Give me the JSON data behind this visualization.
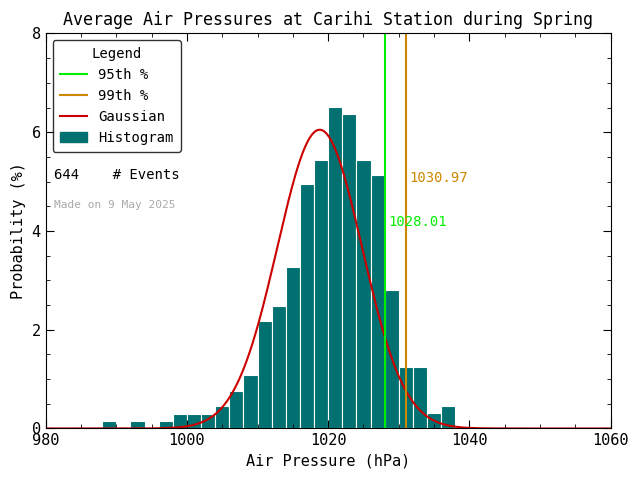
{
  "title": "Average Air Pressures at Carihi Station during Spring",
  "xlabel": "Air Pressure (hPa)",
  "ylabel": "Probability (%)",
  "xlim": [
    980,
    1060
  ],
  "ylim": [
    0,
    8
  ],
  "xticks": [
    980,
    1000,
    1020,
    1040,
    1060
  ],
  "yticks": [
    0,
    2,
    4,
    6,
    8
  ],
  "n_events": 644,
  "pct95": 1028.01,
  "pct99": 1030.97,
  "pct95_color": "#00ee00",
  "pct99_color": "#cc8800",
  "gaussian_color": "#cc0000",
  "hist_color": "#007070",
  "hist_edgecolor": "#ffffff",
  "background_color": "#ffffff",
  "bin_width": 2,
  "bin_lefts": [
    986,
    988,
    990,
    992,
    994,
    996,
    998,
    1000,
    1002,
    1004,
    1006,
    1008,
    1010,
    1012,
    1014,
    1016,
    1018,
    1020,
    1022,
    1024,
    1026,
    1028,
    1030,
    1032,
    1034,
    1036,
    1038
  ],
  "bin_counts_pct": [
    0.0,
    0.15,
    0.0,
    0.15,
    0.0,
    0.15,
    0.3,
    0.3,
    0.3,
    0.46,
    0.76,
    1.08,
    2.17,
    2.48,
    3.26,
    4.96,
    5.44,
    6.52,
    6.37,
    5.44,
    5.13,
    2.8,
    1.24,
    1.24,
    0.31,
    0.46,
    0.0
  ],
  "gauss_mean": 1018.8,
  "gauss_std": 6.0,
  "gauss_amplitude": 6.05,
  "date_text": "Made on 9 May 2025",
  "date_color": "#aaaaaa",
  "title_fontsize": 12,
  "axis_fontsize": 11,
  "tick_fontsize": 11,
  "legend_fontsize": 10,
  "monospace_font": "DejaVu Sans Mono"
}
